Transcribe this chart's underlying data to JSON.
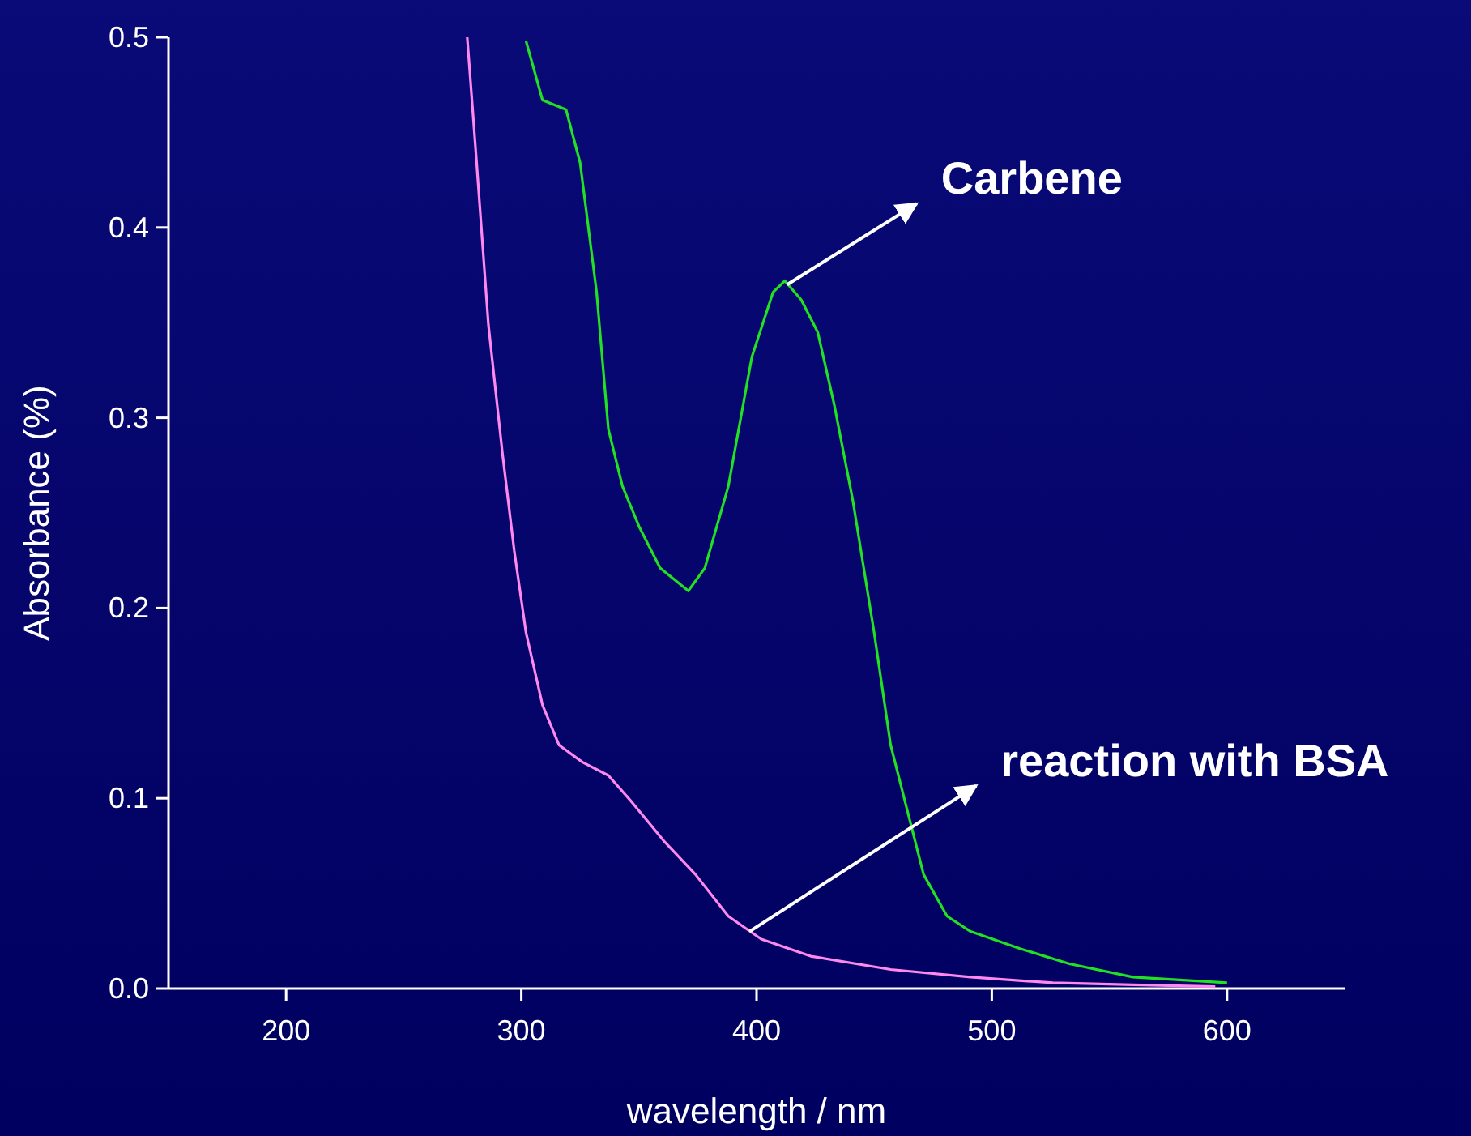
{
  "chart_data": {
    "type": "line",
    "xlabel": "wavelength / nm",
    "ylabel": "Absorbance (%)",
    "xlim": [
      150,
      650
    ],
    "xticks": [
      200,
      300,
      400,
      500,
      600
    ],
    "ylim": [
      0,
      0.5
    ],
    "yticks": [
      {
        "value": 0,
        "label": "0.0"
      },
      {
        "value": 0.1,
        "label": "0.1"
      },
      {
        "value": 0.2,
        "label": "0.2"
      },
      {
        "value": 0.3,
        "label": "0.3"
      },
      {
        "value": 0.4,
        "label": "0.4"
      },
      {
        "value": 0.5,
        "label": "0.5"
      }
    ],
    "grid": false,
    "series": [
      {
        "color": "#22e022",
        "x": [
          302,
          309,
          319,
          325,
          332,
          337,
          343,
          350,
          359,
          371,
          378,
          388,
          398,
          407,
          412,
          419,
          426,
          433,
          441,
          450,
          457,
          464,
          471,
          481,
          491,
          512,
          533,
          560,
          600
        ],
        "values": [
          0.498,
          0.467,
          0.462,
          0.434,
          0.366,
          0.294,
          0.264,
          0.243,
          0.221,
          0.209,
          0.221,
          0.264,
          0.332,
          0.366,
          0.372,
          0.362,
          0.345,
          0.307,
          0.256,
          0.187,
          0.128,
          0.094,
          0.06,
          0.038,
          0.03,
          0.021,
          0.013,
          0.006,
          0.003
        ]
      },
      {
        "color": "#ff88ee",
        "x": [
          277,
          281,
          286,
          292,
          297,
          302,
          309,
          316,
          326,
          337,
          347,
          361,
          374,
          388,
          402,
          423,
          457,
          491,
          526,
          560,
          595
        ],
        "values": [
          0.5,
          0.434,
          0.349,
          0.281,
          0.23,
          0.187,
          0.149,
          0.128,
          0.119,
          0.112,
          0.098,
          0.077,
          0.06,
          0.038,
          0.026,
          0.017,
          0.01,
          0.006,
          0.003,
          0.002,
          0.001
        ]
      }
    ],
    "annotations": [
      {
        "text": "Carbene",
        "x": 413,
        "y": 0.37
      },
      {
        "text": "reaction with BSA",
        "x": 397,
        "y": 0.03
      }
    ]
  }
}
